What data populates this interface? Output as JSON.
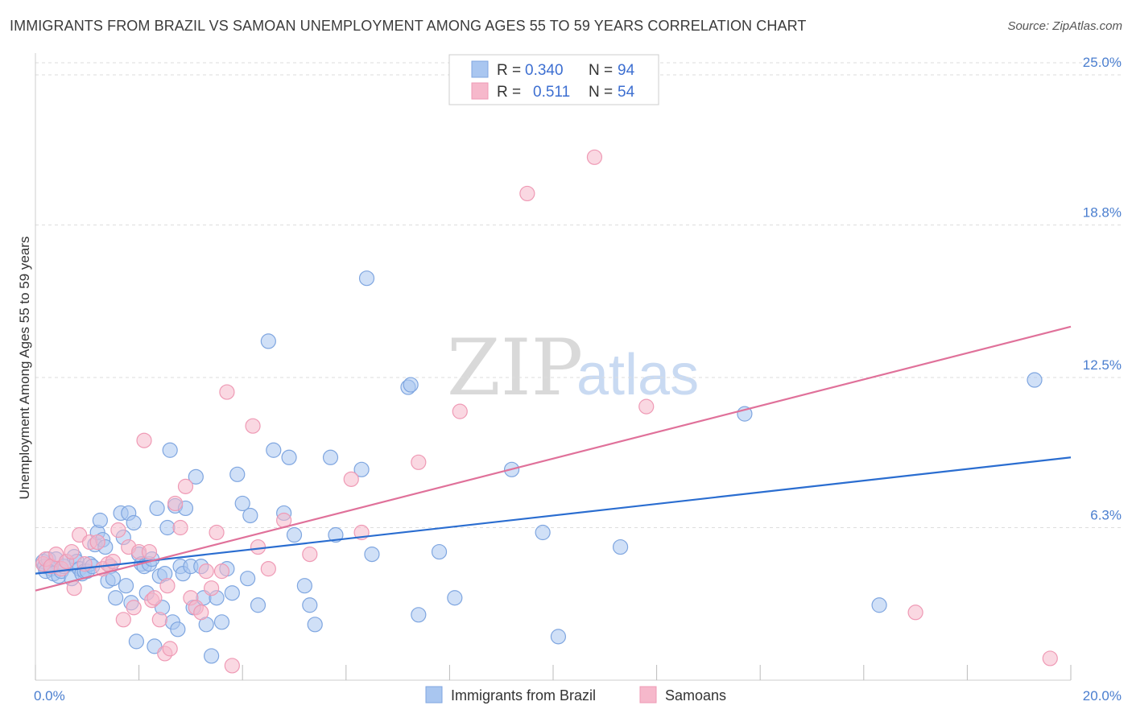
{
  "title": "IMMIGRANTS FROM BRAZIL VS SAMOAN UNEMPLOYMENT AMONG AGES 55 TO 59 YEARS CORRELATION CHART",
  "source": "Source: ZipAtlas.com",
  "watermark": {
    "zip": "ZIP",
    "atlas": "atlas"
  },
  "colors": {
    "blue_fill": "#a9c6f0",
    "blue_stroke": "#7fa6e0",
    "blue_line": "#2a6dd0",
    "pink_fill": "#f6b8cb",
    "pink_stroke": "#ef9ab5",
    "pink_line": "#e0719a",
    "grid": "#dddddd",
    "tick_text": "#4a7ecf"
  },
  "legend": {
    "items": [
      {
        "r_label": "R =",
        "r_value": "0.340",
        "n_label": "N =",
        "n_value": "94",
        "color": "blue"
      },
      {
        "r_label": "R =",
        "r_value": "0.511",
        "n_label": "N =",
        "n_value": "54",
        "color": "pink"
      }
    ]
  },
  "bottom_legend": [
    {
      "label": "Immigrants from Brazil",
      "color": "blue"
    },
    {
      "label": "Samoans",
      "color": "pink"
    }
  ],
  "chart_data": {
    "type": "scatter",
    "title": "IMMIGRANTS FROM BRAZIL VS SAMOAN UNEMPLOYMENT AMONG AGES 55 TO 59 YEARS CORRELATION CHART",
    "xlabel": "",
    "ylabel": "Unemployment Among Ages 55 to 59 years",
    "xlim": [
      0,
      20
    ],
    "ylim": [
      0,
      25.5
    ],
    "x_tick_labels": [
      "0.0%",
      "20.0%"
    ],
    "y_ticks": [
      6.3,
      12.5,
      18.8,
      25.0
    ],
    "y_tick_labels": [
      "6.3%",
      "12.5%",
      "18.8%",
      "25.0%"
    ],
    "grid": true,
    "legend_position": "top-center",
    "series": [
      {
        "name": "Immigrants from Brazil",
        "trend": {
          "x": [
            0,
            20
          ],
          "y": [
            4.4,
            9.2
          ]
        },
        "points": [
          [
            0.15,
            4.9
          ],
          [
            0.18,
            4.7
          ],
          [
            0.2,
            4.5
          ],
          [
            0.25,
            5.0
          ],
          [
            0.3,
            4.6
          ],
          [
            0.35,
            4.4
          ],
          [
            0.4,
            5.0
          ],
          [
            0.45,
            4.3
          ],
          [
            0.5,
            4.5
          ],
          [
            0.55,
            4.7
          ],
          [
            0.6,
            4.9
          ],
          [
            0.7,
            4.2
          ],
          [
            0.75,
            5.1
          ],
          [
            0.8,
            4.9
          ],
          [
            0.85,
            4.6
          ],
          [
            0.9,
            4.4
          ],
          [
            0.95,
            4.5
          ],
          [
            1.0,
            4.5
          ],
          [
            1.05,
            4.8
          ],
          [
            1.1,
            4.7
          ],
          [
            1.15,
            5.6
          ],
          [
            1.2,
            6.1
          ],
          [
            1.25,
            6.6
          ],
          [
            1.3,
            5.8
          ],
          [
            1.35,
            5.5
          ],
          [
            1.4,
            4.1
          ],
          [
            1.45,
            4.7
          ],
          [
            1.5,
            4.2
          ],
          [
            1.55,
            3.4
          ],
          [
            1.65,
            6.9
          ],
          [
            1.7,
            5.9
          ],
          [
            1.75,
            3.9
          ],
          [
            1.8,
            6.9
          ],
          [
            1.85,
            3.2
          ],
          [
            1.9,
            6.5
          ],
          [
            1.95,
            1.6
          ],
          [
            2.0,
            5.2
          ],
          [
            2.05,
            4.8
          ],
          [
            2.1,
            4.7
          ],
          [
            2.15,
            3.6
          ],
          [
            2.2,
            4.8
          ],
          [
            2.25,
            5.0
          ],
          [
            2.3,
            1.4
          ],
          [
            2.35,
            7.1
          ],
          [
            2.4,
            4.3
          ],
          [
            2.45,
            3.0
          ],
          [
            2.5,
            4.4
          ],
          [
            2.55,
            6.3
          ],
          [
            2.6,
            9.5
          ],
          [
            2.65,
            2.4
          ],
          [
            2.7,
            7.2
          ],
          [
            2.75,
            2.1
          ],
          [
            2.8,
            4.7
          ],
          [
            2.85,
            4.4
          ],
          [
            2.9,
            7.1
          ],
          [
            3.0,
            4.7
          ],
          [
            3.05,
            3.0
          ],
          [
            3.1,
            8.4
          ],
          [
            3.2,
            4.7
          ],
          [
            3.25,
            3.4
          ],
          [
            3.3,
            2.3
          ],
          [
            3.4,
            1.0
          ],
          [
            3.5,
            3.4
          ],
          [
            3.6,
            2.4
          ],
          [
            3.7,
            4.6
          ],
          [
            3.8,
            3.6
          ],
          [
            3.9,
            8.5
          ],
          [
            4.0,
            7.3
          ],
          [
            4.1,
            4.2
          ],
          [
            4.15,
            6.8
          ],
          [
            4.3,
            3.1
          ],
          [
            4.5,
            14.0
          ],
          [
            4.6,
            9.5
          ],
          [
            4.8,
            6.9
          ],
          [
            4.9,
            9.2
          ],
          [
            5.0,
            6.0
          ],
          [
            5.2,
            3.9
          ],
          [
            5.3,
            3.1
          ],
          [
            5.4,
            2.3
          ],
          [
            5.7,
            9.2
          ],
          [
            5.8,
            6.0
          ],
          [
            6.3,
            8.7
          ],
          [
            6.4,
            16.6
          ],
          [
            6.5,
            5.2
          ],
          [
            7.2,
            12.1
          ],
          [
            7.25,
            12.2
          ],
          [
            7.4,
            2.7
          ],
          [
            7.8,
            5.3
          ],
          [
            8.1,
            3.4
          ],
          [
            9.2,
            8.7
          ],
          [
            9.8,
            6.1
          ],
          [
            10.1,
            1.8
          ],
          [
            11.3,
            5.5
          ],
          [
            13.7,
            11.0
          ],
          [
            16.3,
            3.1
          ],
          [
            19.3,
            12.4
          ]
        ]
      },
      {
        "name": "Samoans",
        "trend": {
          "x": [
            0,
            20
          ],
          "y": [
            3.7,
            14.6
          ]
        },
        "points": [
          [
            0.15,
            4.8
          ],
          [
            0.2,
            5.0
          ],
          [
            0.3,
            4.7
          ],
          [
            0.4,
            5.2
          ],
          [
            0.5,
            4.6
          ],
          [
            0.6,
            4.9
          ],
          [
            0.7,
            5.3
          ],
          [
            0.75,
            3.8
          ],
          [
            0.85,
            6.0
          ],
          [
            0.95,
            4.8
          ],
          [
            1.05,
            5.7
          ],
          [
            1.2,
            5.7
          ],
          [
            1.3,
            4.6
          ],
          [
            1.4,
            4.8
          ],
          [
            1.5,
            4.9
          ],
          [
            1.6,
            6.2
          ],
          [
            1.7,
            2.5
          ],
          [
            1.8,
            5.5
          ],
          [
            1.9,
            3.0
          ],
          [
            2.0,
            5.3
          ],
          [
            2.1,
            9.9
          ],
          [
            2.2,
            5.3
          ],
          [
            2.25,
            3.3
          ],
          [
            2.3,
            3.4
          ],
          [
            2.4,
            2.5
          ],
          [
            2.5,
            1.1
          ],
          [
            2.55,
            3.9
          ],
          [
            2.6,
            1.3
          ],
          [
            2.7,
            7.3
          ],
          [
            2.8,
            6.3
          ],
          [
            2.9,
            8.0
          ],
          [
            3.0,
            3.4
          ],
          [
            3.1,
            3.0
          ],
          [
            3.2,
            2.8
          ],
          [
            3.3,
            4.5
          ],
          [
            3.4,
            3.8
          ],
          [
            3.5,
            6.1
          ],
          [
            3.6,
            4.5
          ],
          [
            3.7,
            11.9
          ],
          [
            3.8,
            0.6
          ],
          [
            4.2,
            10.5
          ],
          [
            4.3,
            5.5
          ],
          [
            4.5,
            4.6
          ],
          [
            4.8,
            6.6
          ],
          [
            5.3,
            5.2
          ],
          [
            6.1,
            8.3
          ],
          [
            6.3,
            6.1
          ],
          [
            7.4,
            9.0
          ],
          [
            8.2,
            11.1
          ],
          [
            9.5,
            20.1
          ],
          [
            10.8,
            21.6
          ],
          [
            11.8,
            11.3
          ],
          [
            17.0,
            2.8
          ],
          [
            19.6,
            0.9
          ]
        ]
      }
    ]
  }
}
